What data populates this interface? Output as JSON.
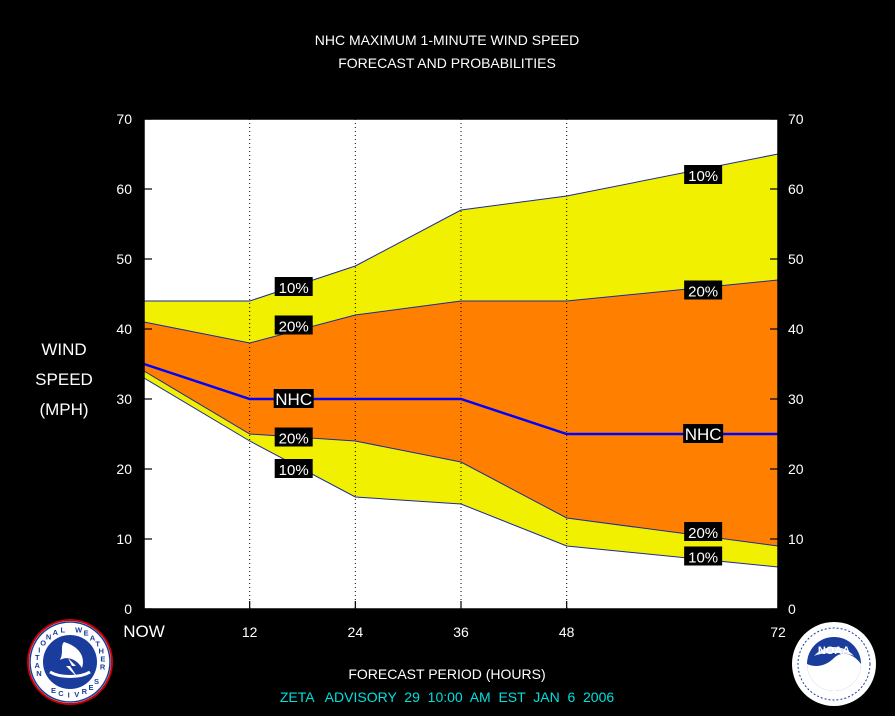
{
  "chart_data": {
    "type": "area",
    "title": "NHC MAXIMUM 1-MINUTE WIND SPEED",
    "subtitle": "FORECAST AND PROBABILITIES",
    "ylabel_lines": [
      "WIND",
      "SPEED",
      "(MPH)"
    ],
    "xlabel": "FORECAST PERIOD (HOURS)",
    "footer": "ZETA   ADVISORY  29  10:00  AM  EST  JAN  6  2006",
    "x_tick_labels": [
      "NOW",
      "12",
      "24",
      "36",
      "48",
      "72"
    ],
    "x_ticks": [
      0,
      12,
      24,
      36,
      48,
      72
    ],
    "y_ticks": [
      0,
      10,
      20,
      30,
      40,
      50,
      60,
      70
    ],
    "xlim": [
      0,
      72
    ],
    "ylim": [
      0,
      70
    ],
    "grid": "vertical-dotted",
    "x": [
      0,
      12,
      24,
      36,
      48,
      72
    ],
    "series": [
      {
        "name": "10%",
        "role": "upper",
        "values": [
          44,
          44,
          49,
          57,
          59,
          65
        ]
      },
      {
        "name": "20%",
        "role": "upper",
        "values": [
          41,
          38,
          42,
          44,
          44,
          47
        ]
      },
      {
        "name": "NHC",
        "role": "forecast",
        "values": [
          35,
          30,
          30,
          30,
          25,
          25
        ]
      },
      {
        "name": "20%",
        "role": "lower",
        "values": [
          34,
          25,
          24,
          21,
          13,
          9
        ]
      },
      {
        "name": "10%",
        "role": "lower",
        "values": [
          33,
          24,
          16,
          15,
          9,
          6
        ]
      }
    ],
    "labels": [
      {
        "text": "10%",
        "x": 17,
        "y": 46
      },
      {
        "text": "20%",
        "x": 17,
        "y": 40.5
      },
      {
        "text": "NHC",
        "x": 17,
        "y": 30
      },
      {
        "text": "20%",
        "x": 17,
        "y": 24.5
      },
      {
        "text": "10%",
        "x": 17,
        "y": 20
      },
      {
        "text": "10%",
        "x": 63.5,
        "y": 62
      },
      {
        "text": "20%",
        "x": 63.5,
        "y": 45.5
      },
      {
        "text": "NHC",
        "x": 63.5,
        "y": 25
      },
      {
        "text": "20%",
        "x": 63.5,
        "y": 11
      },
      {
        "text": "10%",
        "x": 63.5,
        "y": 7.5
      }
    ],
    "colors": {
      "background": "#000000",
      "plot_background": "#ffffff",
      "band_10": "#f0f000",
      "band_20": "#ff8000",
      "nhc_line": "#0000ff",
      "footer_text": "#00e0e0"
    }
  },
  "logos": {
    "left": "NATIONAL WEATHER SERVICE",
    "right": "NOAA"
  }
}
